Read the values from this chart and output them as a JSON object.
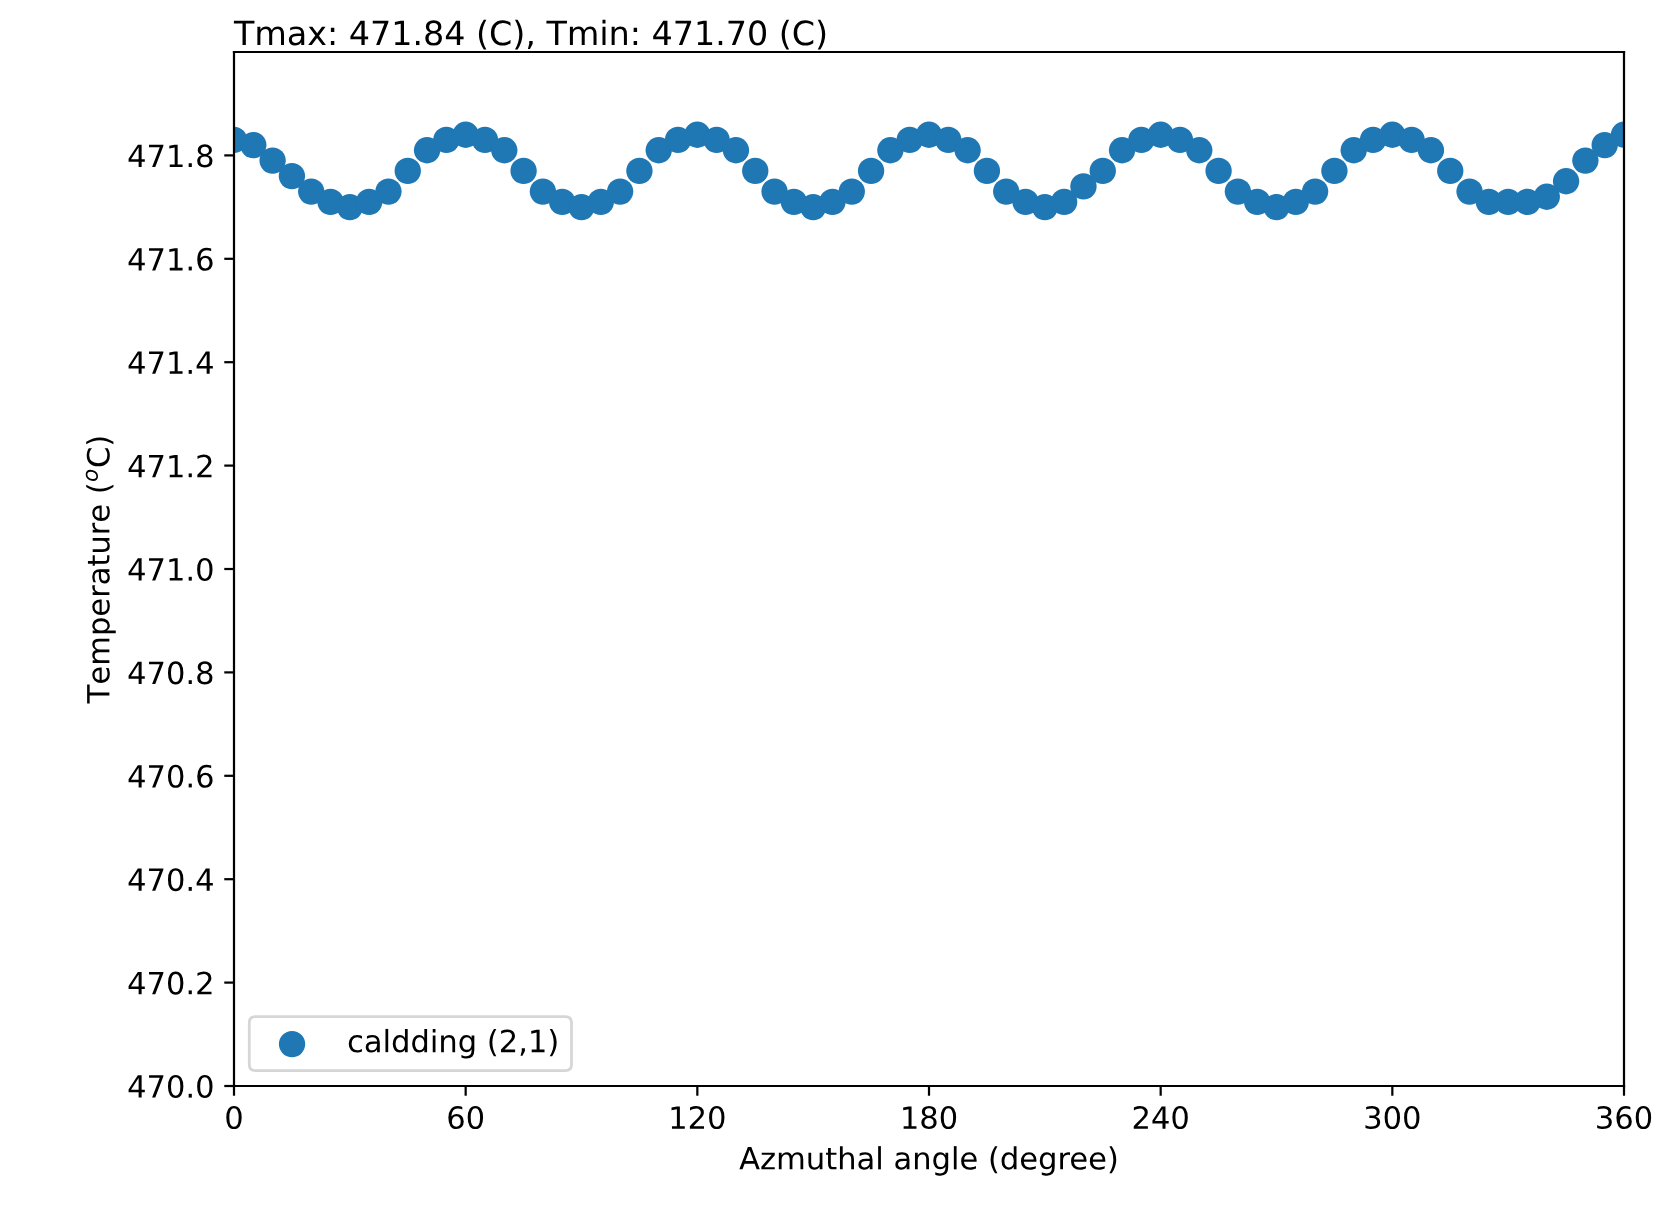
{
  "chart_data": {
    "type": "scatter",
    "title": "Tmax: 471.84 (C), Tmin: 471.70 (C)",
    "xlabel": "Azmuthal angle (degree)",
    "ylabel": "Temperature ($^{o}$C)",
    "x": [
      0,
      5,
      10,
      15,
      20,
      25,
      30,
      35,
      40,
      45,
      50,
      55,
      60,
      65,
      70,
      75,
      80,
      85,
      90,
      95,
      100,
      105,
      110,
      115,
      120,
      125,
      130,
      135,
      140,
      145,
      150,
      155,
      160,
      165,
      170,
      175,
      180,
      185,
      190,
      195,
      200,
      205,
      210,
      215,
      220,
      225,
      230,
      235,
      240,
      245,
      250,
      255,
      260,
      265,
      270,
      275,
      280,
      285,
      290,
      295,
      300,
      305,
      310,
      315,
      320,
      325,
      330,
      335,
      340,
      345,
      350,
      355,
      360
    ],
    "series": [
      {
        "name": "caldding (2,1)",
        "color": "#1f77b4",
        "values": [
          471.83,
          471.82,
          471.79,
          471.76,
          471.73,
          471.71,
          471.7,
          471.71,
          471.73,
          471.77,
          471.81,
          471.83,
          471.84,
          471.83,
          471.81,
          471.77,
          471.73,
          471.71,
          471.7,
          471.71,
          471.73,
          471.77,
          471.81,
          471.83,
          471.84,
          471.83,
          471.81,
          471.77,
          471.73,
          471.71,
          471.7,
          471.71,
          471.73,
          471.77,
          471.81,
          471.83,
          471.84,
          471.83,
          471.81,
          471.77,
          471.73,
          471.71,
          471.7,
          471.71,
          471.74,
          471.77,
          471.81,
          471.83,
          471.84,
          471.83,
          471.81,
          471.77,
          471.73,
          471.71,
          471.7,
          471.71,
          471.73,
          471.77,
          471.81,
          471.83,
          471.84,
          471.83,
          471.81,
          471.77,
          471.73,
          471.71,
          471.71,
          471.71,
          471.72,
          471.75,
          471.79,
          471.82,
          471.84
        ]
      }
    ],
    "xlim": [
      0,
      360
    ],
    "xticks": [
      0,
      60,
      120,
      180,
      240,
      300,
      360
    ],
    "ylim": [
      470.0,
      472.0
    ],
    "yticks": [
      {
        "value": 470.0,
        "label": "470.0"
      },
      {
        "value": 470.2,
        "label": "470.2"
      },
      {
        "value": 470.4,
        "label": "470.4"
      },
      {
        "value": 470.6,
        "label": "470.6"
      },
      {
        "value": 470.8,
        "label": "470.8"
      },
      {
        "value": 471.0,
        "label": "471.0"
      },
      {
        "value": 471.2,
        "label": "471.2"
      },
      {
        "value": 471.4,
        "label": "471.4"
      },
      {
        "value": 471.6,
        "label": "471.6"
      },
      {
        "value": 471.8,
        "label": "471.8"
      }
    ],
    "marker": "circle",
    "legend": "bottom left",
    "grid": false
  }
}
